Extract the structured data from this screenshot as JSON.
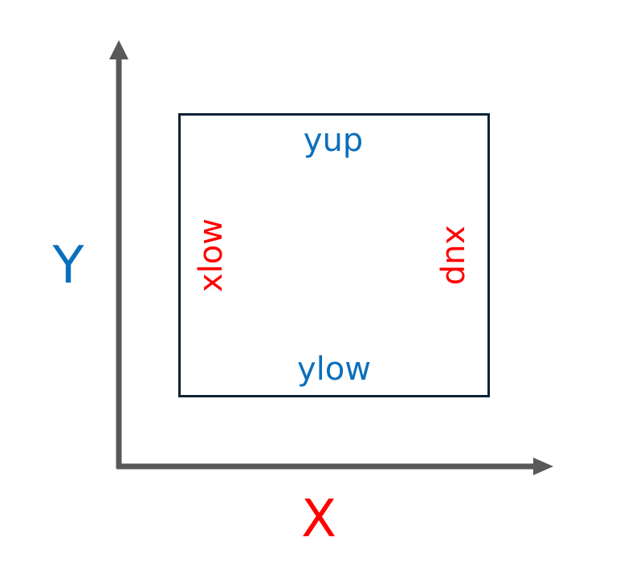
{
  "axes": {
    "x_label": "X",
    "y_label": "Y"
  },
  "box": {
    "top_label": "yup",
    "bottom_label": "ylow",
    "left_label": "xlow",
    "right_label": "xup"
  },
  "colors": {
    "axis": "#595959",
    "box_border": "#0d2233",
    "blue": "#0a6fbd",
    "red": "#ff0000"
  }
}
